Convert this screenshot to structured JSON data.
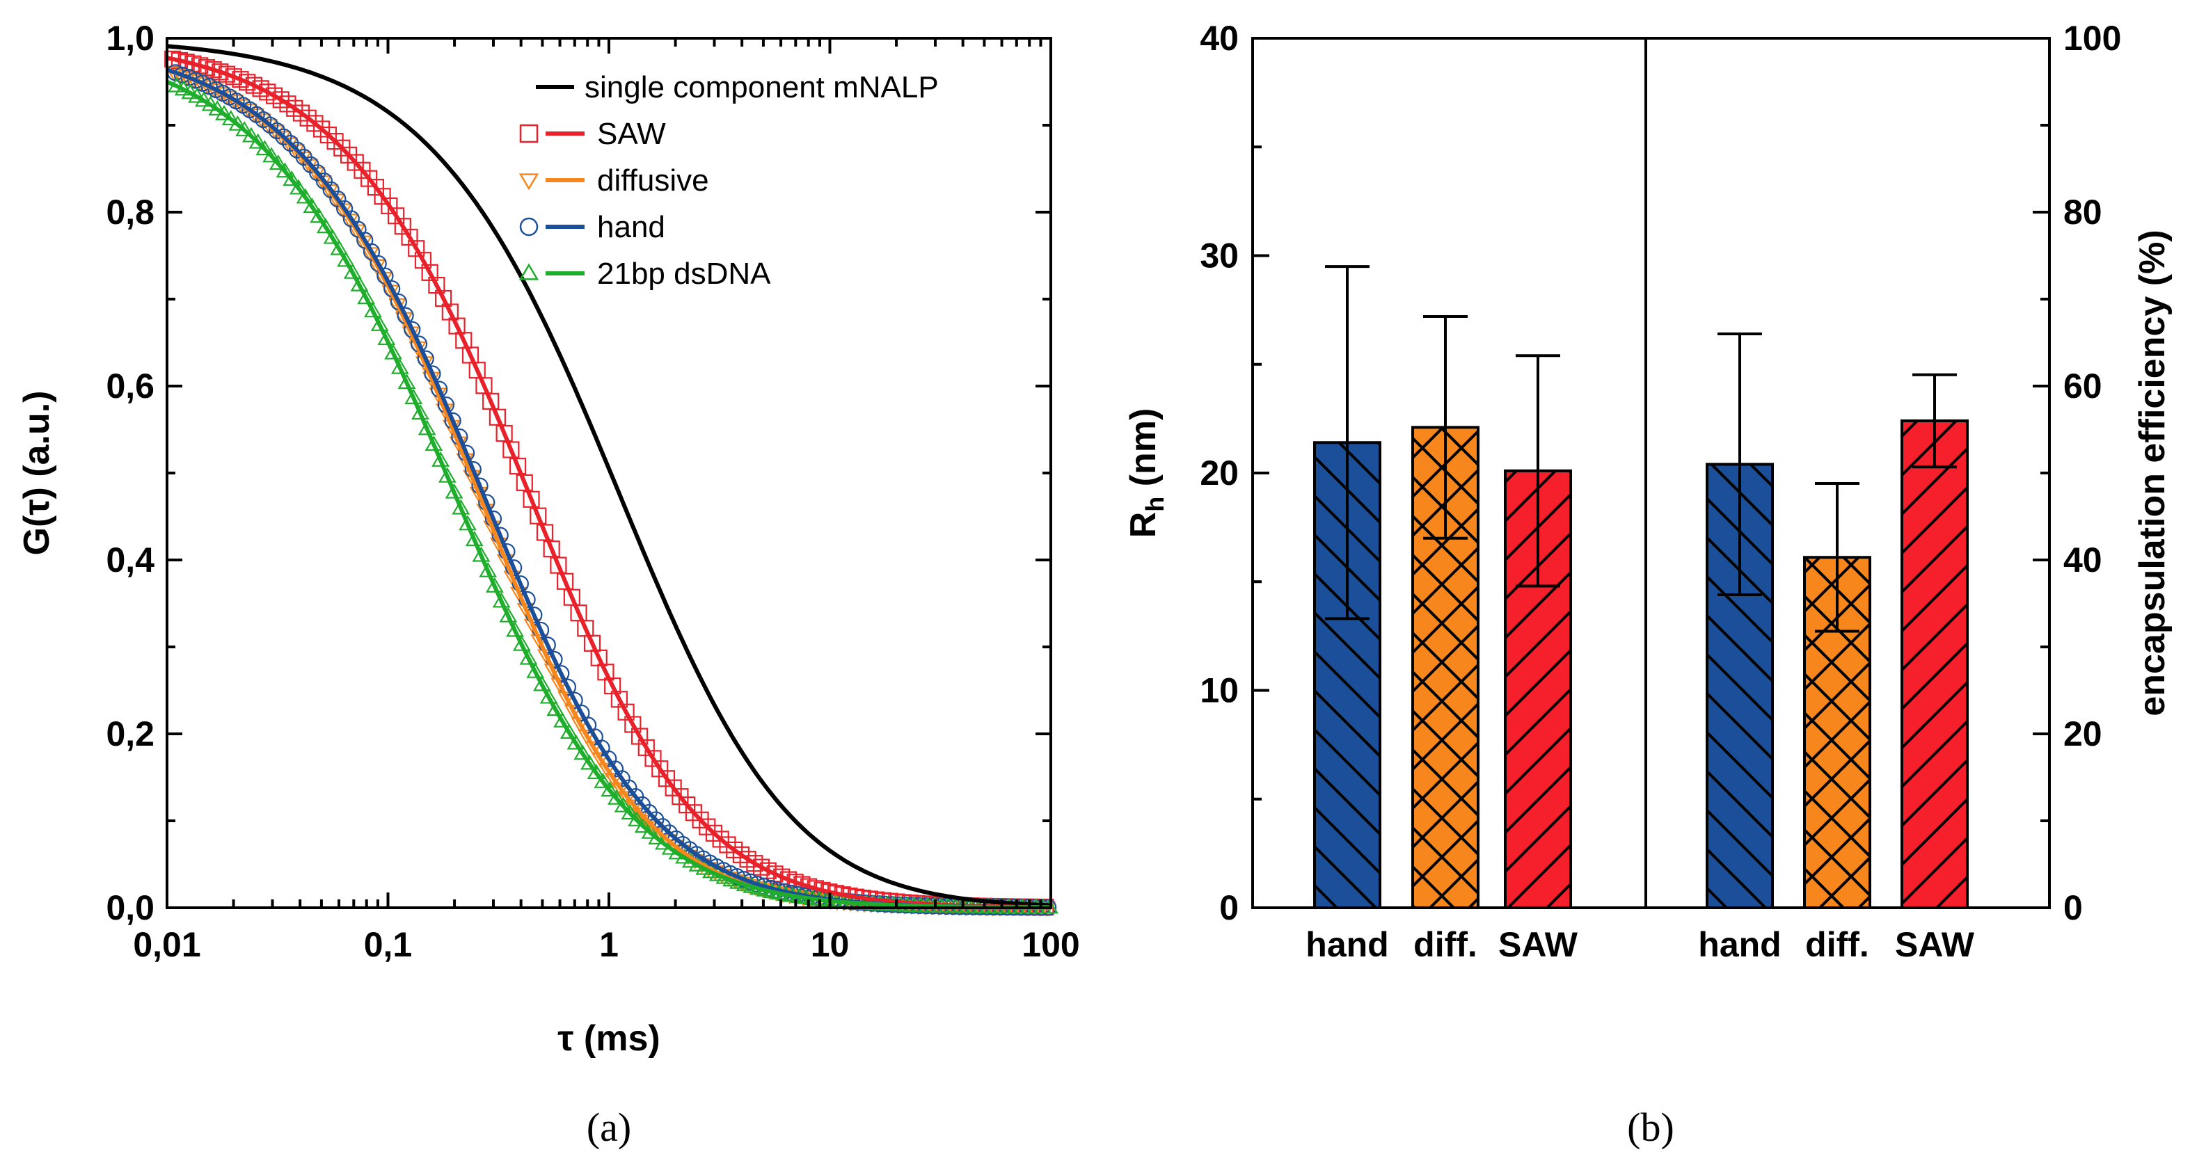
{
  "chart_data": [
    {
      "panel_label": "(a)",
      "type": "line",
      "xscale": "log",
      "xlabel": "τ (ms)",
      "ylabel": "G(τ) (a.u.)",
      "xlim": [
        0.01,
        100
      ],
      "ylim": [
        0,
        1.0
      ],
      "xticks": [
        0.01,
        0.1,
        1,
        10,
        100
      ],
      "xtick_labels": [
        "0,01",
        "0,1",
        "1",
        "10",
        "100"
      ],
      "yticks": [
        0,
        0.2,
        0.4,
        0.6,
        0.8,
        1.0
      ],
      "ytick_labels": [
        "0,0",
        "0,2",
        "0,4",
        "0,6",
        "0,8",
        "1,0"
      ],
      "legend_position": "top-right",
      "series": [
        {
          "name": "single component mNALP",
          "color": "#000000",
          "marker": "none",
          "model": {
            "tau": 1.2,
            "s": 0.2
          }
        },
        {
          "name": "SAW",
          "color": "#e8212b",
          "marker": "square",
          "model": {
            "tau": 0.5,
            "s": 0.3
          }
        },
        {
          "name": "diffusive",
          "color": "#f7861c",
          "marker": "triangle-down",
          "model": {
            "tau": 0.33,
            "s": 0.5
          }
        },
        {
          "name": "hand",
          "color": "#1b4f9a",
          "marker": "circle",
          "model": {
            "tau": 0.3,
            "s": 0.25
          }
        },
        {
          "name": "21bp dsDNA",
          "color": "#1fae2c",
          "marker": "triangle-up",
          "model": {
            "tau": 0.2,
            "s": 0.1
          }
        }
      ]
    },
    {
      "panel_label": "(b)",
      "type": "bar",
      "ylabel_left": "Rh (nm)",
      "ylabel_left_main": "R",
      "ylabel_left_sub": "h",
      "ylabel_left_unit": " (nm)",
      "ylabel_right": "encapsulation efficiency (%)",
      "ylim_left": [
        0,
        40
      ],
      "ylim_right": [
        0,
        100
      ],
      "yticks_left": [
        0,
        10,
        20,
        30,
        40
      ],
      "yticks_left_labels": [
        "0",
        "10",
        "20",
        "30",
        "40"
      ],
      "yticks_right": [
        0,
        20,
        40,
        60,
        80,
        100
      ],
      "yticks_right_labels": [
        "0",
        "20",
        "40",
        "60",
        "80",
        "100"
      ],
      "groups": [
        {
          "axis": "left",
          "categories": [
            "hand",
            "diff.",
            "SAW"
          ],
          "values": [
            21.4,
            22.1,
            20.1
          ],
          "errors": [
            8.1,
            5.1,
            5.3
          ],
          "colors": [
            "#1b4f9a",
            "#f7861c",
            "#f5202b"
          ],
          "hatches": [
            "back",
            "cross",
            "forward"
          ]
        },
        {
          "axis": "right",
          "categories": [
            "hand",
            "diff.",
            "SAW"
          ],
          "values": [
            51,
            40.3,
            56
          ],
          "errors": [
            15,
            8.5,
            5.3
          ],
          "colors": [
            "#1b4f9a",
            "#f7861c",
            "#f5202b"
          ],
          "hatches": [
            "back",
            "cross",
            "forward"
          ]
        }
      ]
    }
  ]
}
